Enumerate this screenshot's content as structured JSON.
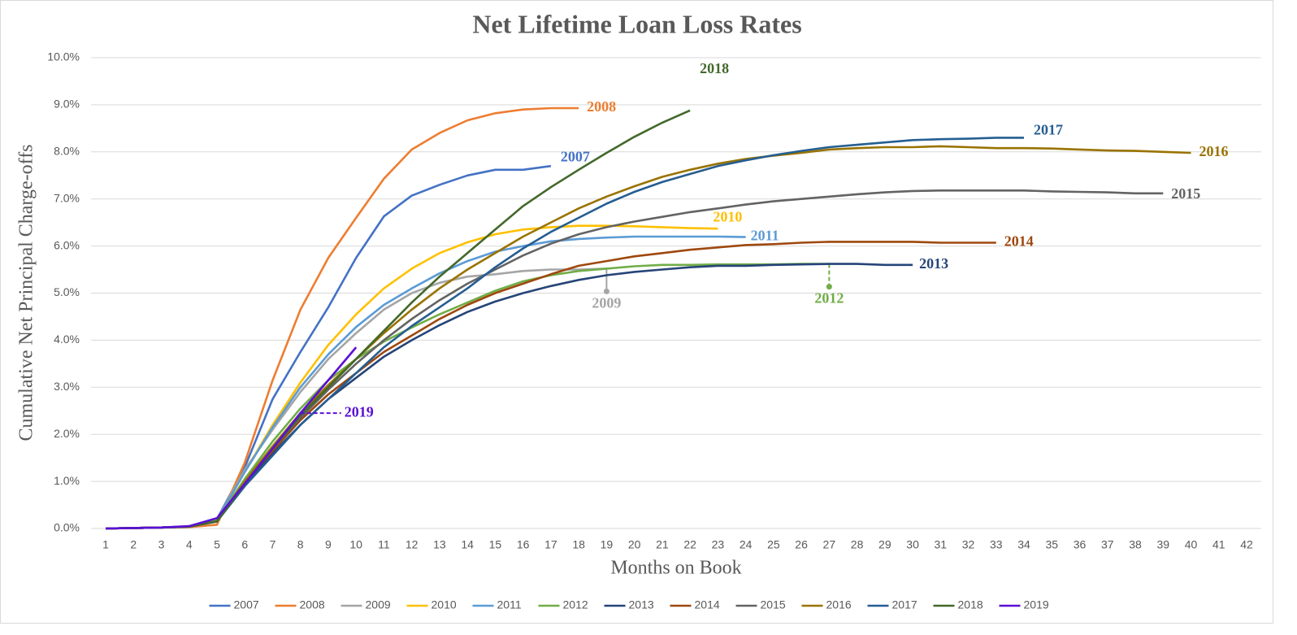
{
  "chart_data": {
    "type": "line",
    "title": "Net Lifetime Loan Loss Rates",
    "x_label": "Months on Book",
    "y_label": "Cumulative Net Principal Charge-offs",
    "x": [
      1,
      2,
      3,
      4,
      5,
      6,
      7,
      8,
      9,
      10,
      11,
      12,
      13,
      14,
      15,
      16,
      17,
      18,
      19,
      20,
      21,
      22,
      23,
      24,
      25,
      26,
      27,
      28,
      29,
      30,
      31,
      32,
      33,
      34,
      35,
      36,
      37,
      38,
      39,
      40,
      41,
      42
    ],
    "xlim": [
      1,
      42
    ],
    "xticks": [
      1,
      2,
      3,
      4,
      5,
      6,
      7,
      8,
      9,
      10,
      11,
      12,
      13,
      14,
      15,
      16,
      17,
      18,
      19,
      20,
      21,
      22,
      23,
      24,
      25,
      26,
      27,
      28,
      29,
      30,
      31,
      32,
      33,
      34,
      35,
      36,
      37,
      38,
      39,
      40,
      41,
      42
    ],
    "ylim": [
      0,
      10
    ],
    "yticks": [
      {
        "value": 0,
        "label": "0.0%"
      },
      {
        "value": 1,
        "label": "1.0%"
      },
      {
        "value": 2,
        "label": "2.0%"
      },
      {
        "value": 3,
        "label": "3.0%"
      },
      {
        "value": 4,
        "label": "4.0%"
      },
      {
        "value": 5,
        "label": "5.0%"
      },
      {
        "value": 6,
        "label": "6.0%"
      },
      {
        "value": 7,
        "label": "7.0%"
      },
      {
        "value": 8,
        "label": "8.0%"
      },
      {
        "value": 9,
        "label": "9.0%"
      },
      {
        "value": 10,
        "label": "10.0%"
      }
    ],
    "grid": true,
    "legend": "bottom",
    "series": [
      {
        "name": "2007",
        "color": "#4472c4",
        "values": [
          0,
          0.01,
          0.02,
          0.04,
          0.2,
          1.3,
          2.75,
          3.75,
          4.7,
          5.75,
          6.63,
          7.07,
          7.3,
          7.5,
          7.62,
          7.62,
          7.7,
          null,
          null,
          null,
          null,
          null,
          null,
          null,
          null,
          null,
          null,
          null,
          null,
          null,
          null,
          null,
          null,
          null,
          null,
          null,
          null,
          null,
          null,
          null,
          null,
          null
        ]
      },
      {
        "name": "2008",
        "color": "#ed7d31",
        "values": [
          0,
          0.01,
          0.02,
          0.03,
          0.08,
          1.4,
          3.15,
          4.65,
          5.75,
          6.6,
          7.43,
          8.05,
          8.4,
          8.67,
          8.82,
          8.9,
          8.93,
          8.93,
          null,
          null,
          null,
          null,
          null,
          null,
          null,
          null,
          null,
          null,
          null,
          null,
          null,
          null,
          null,
          null,
          null,
          null,
          null,
          null,
          null,
          null,
          null,
          null
        ]
      },
      {
        "name": "2009",
        "color": "#a5a5a5",
        "values": [
          0,
          0.01,
          0.02,
          0.04,
          0.18,
          1.25,
          2.1,
          2.9,
          3.6,
          4.15,
          4.65,
          5.0,
          5.22,
          5.35,
          5.4,
          5.47,
          5.5,
          5.5,
          5.52,
          null,
          null,
          null,
          null,
          null,
          null,
          null,
          null,
          null,
          null,
          null,
          null,
          null,
          null,
          null,
          null,
          null,
          null,
          null,
          null,
          null,
          null,
          null
        ]
      },
      {
        "name": "2010",
        "color": "#ffc000",
        "values": [
          0,
          0.01,
          0.02,
          0.04,
          0.18,
          1.2,
          2.2,
          3.1,
          3.9,
          4.55,
          5.1,
          5.52,
          5.85,
          6.08,
          6.25,
          6.35,
          6.4,
          6.43,
          6.43,
          6.42,
          6.4,
          6.38,
          6.37,
          null,
          null,
          null,
          null,
          null,
          null,
          null,
          null,
          null,
          null,
          null,
          null,
          null,
          null,
          null,
          null,
          null,
          null,
          null
        ]
      },
      {
        "name": "2011",
        "color": "#5b9bd5",
        "values": [
          0,
          0.01,
          0.02,
          0.04,
          0.18,
          1.2,
          2.15,
          3.0,
          3.7,
          4.28,
          4.75,
          5.1,
          5.42,
          5.68,
          5.88,
          6.0,
          6.1,
          6.15,
          6.18,
          6.2,
          6.2,
          6.2,
          6.2,
          6.19,
          null,
          null,
          null,
          null,
          null,
          null,
          null,
          null,
          null,
          null,
          null,
          null,
          null,
          null,
          null,
          null,
          null,
          null
        ]
      },
      {
        "name": "2012",
        "color": "#70ad47",
        "values": [
          0,
          0.01,
          0.02,
          0.04,
          0.18,
          1.05,
          1.85,
          2.55,
          3.15,
          3.6,
          3.97,
          4.27,
          4.55,
          4.8,
          5.05,
          5.25,
          5.38,
          5.47,
          5.52,
          5.57,
          5.6,
          5.6,
          5.61,
          5.61,
          5.61,
          5.62,
          5.62,
          null,
          null,
          null,
          null,
          null,
          null,
          null,
          null,
          null,
          null,
          null,
          null,
          null,
          null,
          null
        ]
      },
      {
        "name": "2013",
        "color": "#264478",
        "values": [
          0,
          0.01,
          0.02,
          0.04,
          0.15,
          0.95,
          1.6,
          2.2,
          2.75,
          3.2,
          3.65,
          4.0,
          4.32,
          4.6,
          4.82,
          5.0,
          5.15,
          5.28,
          5.38,
          5.45,
          5.5,
          5.55,
          5.58,
          5.58,
          5.6,
          5.61,
          5.62,
          5.62,
          5.6,
          5.6,
          null,
          null,
          null,
          null,
          null,
          null,
          null,
          null,
          null,
          null,
          null,
          null
        ]
      },
      {
        "name": "2014",
        "color": "#9e480e",
        "values": [
          0,
          0.01,
          0.02,
          0.04,
          0.15,
          1.0,
          1.65,
          2.3,
          2.85,
          3.3,
          3.75,
          4.1,
          4.45,
          4.75,
          5.0,
          5.2,
          5.4,
          5.58,
          5.68,
          5.78,
          5.85,
          5.92,
          5.97,
          6.02,
          6.04,
          6.07,
          6.09,
          6.09,
          6.09,
          6.09,
          6.07,
          6.07,
          6.07,
          null,
          null,
          null,
          null,
          null,
          null,
          null,
          null,
          null
        ]
      },
      {
        "name": "2015",
        "color": "#636363",
        "values": [
          0,
          0.01,
          0.02,
          0.04,
          0.15,
          1.0,
          1.7,
          2.35,
          2.95,
          3.5,
          4.0,
          4.45,
          4.85,
          5.2,
          5.5,
          5.8,
          6.05,
          6.25,
          6.4,
          6.52,
          6.62,
          6.72,
          6.8,
          6.88,
          6.95,
          7.0,
          7.05,
          7.1,
          7.14,
          7.17,
          7.18,
          7.18,
          7.18,
          7.18,
          7.16,
          7.15,
          7.14,
          7.12,
          7.12,
          null,
          null,
          null
        ]
      },
      {
        "name": "2016",
        "color": "#997300",
        "values": [
          0,
          0.01,
          0.02,
          0.04,
          0.15,
          1.0,
          1.75,
          2.45,
          3.05,
          3.6,
          4.15,
          4.65,
          5.1,
          5.5,
          5.85,
          6.2,
          6.5,
          6.8,
          7.05,
          7.27,
          7.47,
          7.62,
          7.75,
          7.85,
          7.92,
          7.98,
          8.05,
          8.08,
          8.1,
          8.1,
          8.12,
          8.1,
          8.08,
          8.08,
          8.07,
          8.05,
          8.03,
          8.02,
          8.0,
          7.98,
          null,
          null
        ]
      },
      {
        "name": "2017",
        "color": "#255e91",
        "values": [
          0,
          0.01,
          0.02,
          0.04,
          0.15,
          0.9,
          1.55,
          2.2,
          2.75,
          3.3,
          3.85,
          4.3,
          4.7,
          5.1,
          5.55,
          5.95,
          6.3,
          6.6,
          6.9,
          7.15,
          7.36,
          7.53,
          7.7,
          7.82,
          7.93,
          8.02,
          8.1,
          8.15,
          8.2,
          8.25,
          8.27,
          8.28,
          8.3,
          8.3,
          null,
          null,
          null,
          null,
          null,
          null,
          null,
          null
        ]
      },
      {
        "name": "2018",
        "color": "#43682b",
        "values": [
          0,
          0.01,
          0.02,
          0.04,
          0.15,
          0.95,
          1.7,
          2.4,
          3.0,
          3.6,
          4.2,
          4.8,
          5.35,
          5.85,
          6.35,
          6.85,
          7.25,
          7.62,
          7.98,
          8.32,
          8.62,
          8.88,
          null,
          null,
          null,
          null,
          null,
          null,
          null,
          null,
          null,
          null,
          null,
          null,
          null,
          null,
          null,
          null,
          null,
          null,
          null,
          null
        ]
      },
      {
        "name": "2019",
        "color": "#5b0fd6",
        "values": [
          0,
          0.01,
          0.02,
          0.05,
          0.22,
          0.95,
          1.7,
          2.45,
          3.15,
          3.85,
          null,
          null,
          null,
          null,
          null,
          null,
          null,
          null,
          null,
          null,
          null,
          null,
          null,
          null,
          null,
          null,
          null,
          null,
          null,
          null,
          null,
          null,
          null,
          null,
          null,
          null,
          null,
          null,
          null,
          null,
          null,
          null
        ]
      }
    ]
  }
}
